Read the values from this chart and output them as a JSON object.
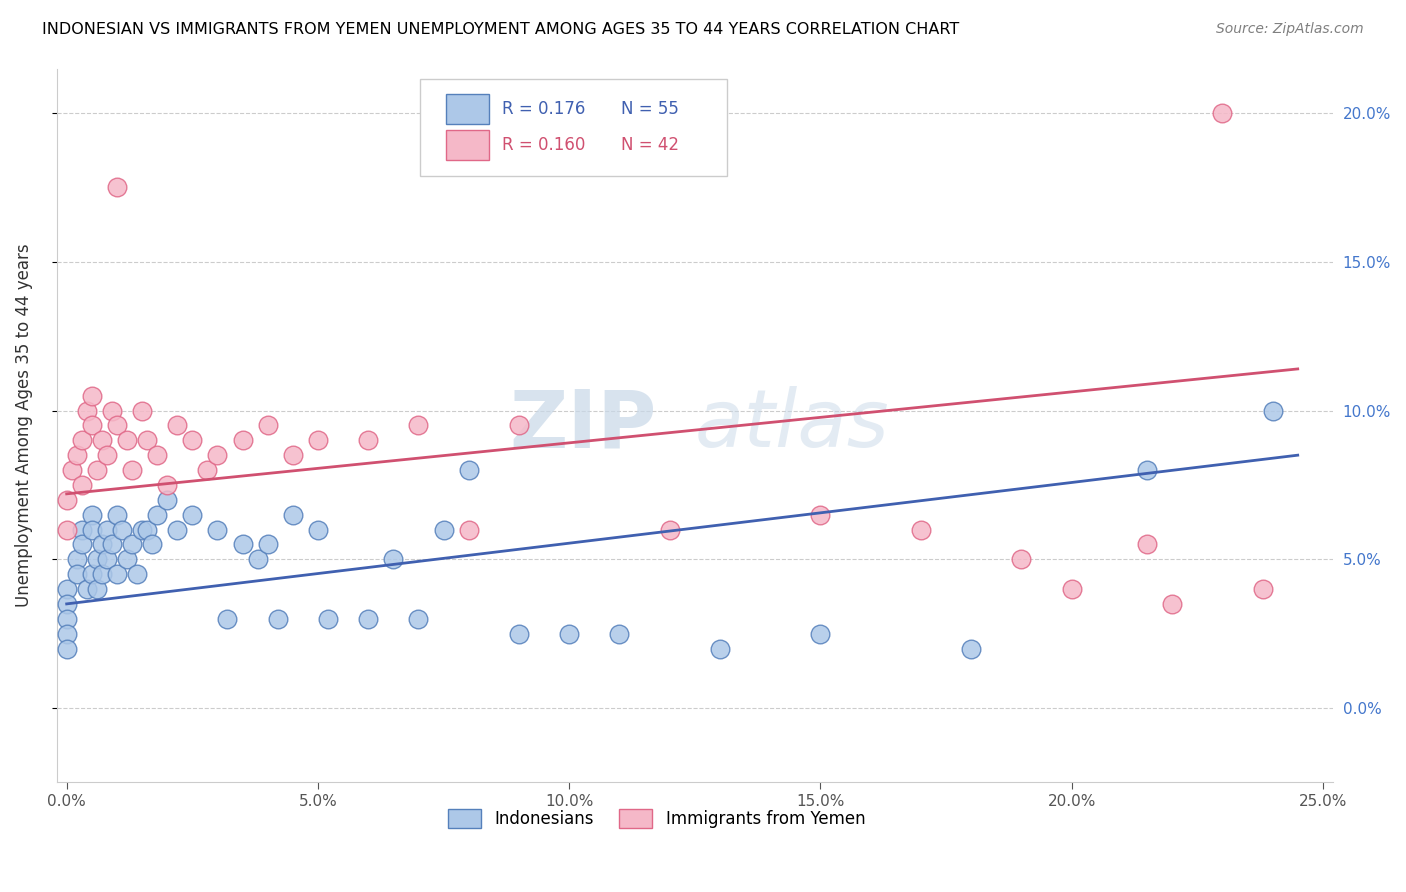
{
  "title": "INDONESIAN VS IMMIGRANTS FROM YEMEN UNEMPLOYMENT AMONG AGES 35 TO 44 YEARS CORRELATION CHART",
  "source": "Source: ZipAtlas.com",
  "ylabel": "Unemployment Among Ages 35 to 44 years",
  "xlim": [
    -0.002,
    0.252
  ],
  "ylim": [
    -0.025,
    0.215
  ],
  "xticks": [
    0.0,
    0.05,
    0.1,
    0.15,
    0.2,
    0.25
  ],
  "xticklabels": [
    "0.0%",
    "5.0%",
    "10.0%",
    "15.0%",
    "20.0%",
    "25.0%"
  ],
  "yticks": [
    0.0,
    0.05,
    0.1,
    0.15,
    0.2
  ],
  "yticklabels": [
    "0.0%",
    "5.0%",
    "10.0%",
    "15.0%",
    "20.0%"
  ],
  "blue_color": "#adc8e8",
  "blue_edge": "#5580bb",
  "pink_color": "#f5b8c8",
  "pink_edge": "#e06888",
  "blue_line_color": "#4060b0",
  "pink_line_color": "#d05070",
  "watermark_zip": "ZIP",
  "watermark_atlas": "atlas",
  "legend_R_blue": "R = 0.176",
  "legend_N_blue": "N = 55",
  "legend_R_pink": "R = 0.160",
  "legend_N_pink": "N = 42",
  "indonesian_label": "Indonesians",
  "yemen_label": "Immigrants from Yemen",
  "blue_scatter_x": [
    0.0,
    0.0,
    0.0,
    0.0,
    0.0,
    0.002,
    0.002,
    0.003,
    0.003,
    0.004,
    0.005,
    0.005,
    0.005,
    0.006,
    0.006,
    0.007,
    0.007,
    0.008,
    0.008,
    0.009,
    0.01,
    0.01,
    0.011,
    0.012,
    0.013,
    0.014,
    0.015,
    0.016,
    0.017,
    0.018,
    0.02,
    0.022,
    0.025,
    0.03,
    0.032,
    0.035,
    0.038,
    0.04,
    0.042,
    0.045,
    0.05,
    0.052,
    0.06,
    0.065,
    0.07,
    0.075,
    0.08,
    0.09,
    0.1,
    0.11,
    0.13,
    0.15,
    0.18,
    0.215,
    0.24
  ],
  "blue_scatter_y": [
    0.04,
    0.035,
    0.03,
    0.025,
    0.02,
    0.05,
    0.045,
    0.06,
    0.055,
    0.04,
    0.065,
    0.06,
    0.045,
    0.05,
    0.04,
    0.055,
    0.045,
    0.06,
    0.05,
    0.055,
    0.065,
    0.045,
    0.06,
    0.05,
    0.055,
    0.045,
    0.06,
    0.06,
    0.055,
    0.065,
    0.07,
    0.06,
    0.065,
    0.06,
    0.03,
    0.055,
    0.05,
    0.055,
    0.03,
    0.065,
    0.06,
    0.03,
    0.03,
    0.05,
    0.03,
    0.06,
    0.08,
    0.025,
    0.025,
    0.025,
    0.02,
    0.025,
    0.02,
    0.08,
    0.1
  ],
  "pink_scatter_x": [
    0.0,
    0.0,
    0.001,
    0.002,
    0.003,
    0.003,
    0.004,
    0.005,
    0.005,
    0.006,
    0.007,
    0.008,
    0.009,
    0.01,
    0.012,
    0.013,
    0.015,
    0.016,
    0.018,
    0.02,
    0.022,
    0.025,
    0.028,
    0.03,
    0.035,
    0.04,
    0.045,
    0.05,
    0.06,
    0.07,
    0.08,
    0.09,
    0.12,
    0.15,
    0.17,
    0.19,
    0.2,
    0.215,
    0.22,
    0.23,
    0.238,
    0.01
  ],
  "pink_scatter_y": [
    0.07,
    0.06,
    0.08,
    0.085,
    0.09,
    0.075,
    0.1,
    0.095,
    0.105,
    0.08,
    0.09,
    0.085,
    0.1,
    0.095,
    0.09,
    0.08,
    0.1,
    0.09,
    0.085,
    0.075,
    0.095,
    0.09,
    0.08,
    0.085,
    0.09,
    0.095,
    0.085,
    0.09,
    0.09,
    0.095,
    0.06,
    0.095,
    0.06,
    0.065,
    0.06,
    0.05,
    0.04,
    0.055,
    0.035,
    0.2,
    0.04,
    0.175
  ],
  "blue_line_x": [
    0.0,
    0.245
  ],
  "blue_line_y": [
    0.035,
    0.085
  ],
  "pink_line_x": [
    0.0,
    0.245
  ],
  "pink_line_y": [
    0.072,
    0.114
  ]
}
